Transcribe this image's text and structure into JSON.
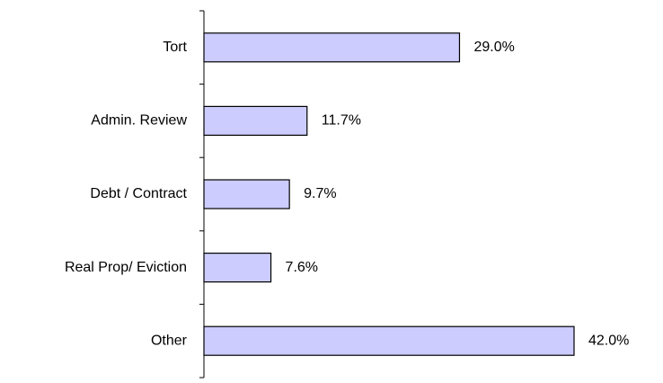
{
  "chart_data": {
    "type": "bar",
    "orientation": "horizontal",
    "categories": [
      "Tort",
      "Admin. Review",
      "Debt / Contract",
      "Real Prop/ Eviction",
      "Other"
    ],
    "values": [
      29.0,
      11.7,
      9.7,
      7.6,
      42.0
    ],
    "value_labels": [
      "29.0%",
      "11.7%",
      "9.7%",
      "7.6%",
      "42.0%"
    ],
    "color": "#ccccff"
  }
}
